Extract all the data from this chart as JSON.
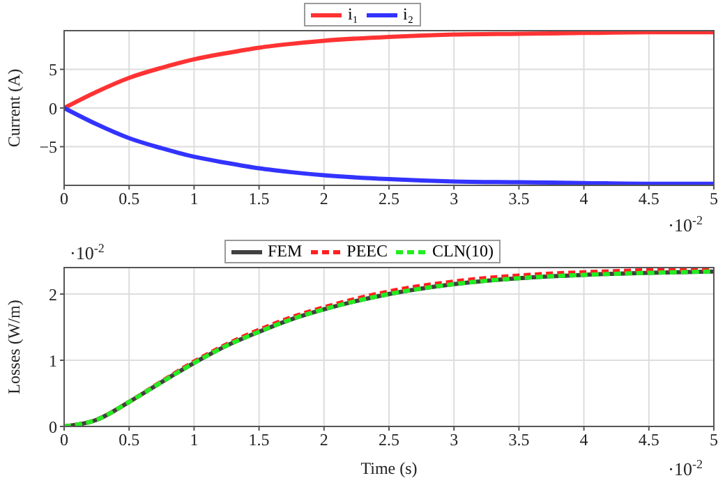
{
  "chart_data": [
    {
      "type": "line",
      "ylabel": "Current (A)",
      "legend": "top",
      "grid": true,
      "x": [
        0,
        0.25,
        0.5,
        0.75,
        1,
        1.25,
        1.5,
        1.75,
        2,
        2.5,
        3,
        3.5,
        4,
        4.5,
        5
      ],
      "series": [
        {
          "name": "i₁",
          "color": "#ff3333",
          "values": [
            0,
            2.1,
            3.9,
            5.2,
            6.3,
            7.1,
            7.8,
            8.3,
            8.7,
            9.2,
            9.5,
            9.6,
            9.7,
            9.8,
            9.8
          ]
        },
        {
          "name": "i₂",
          "color": "#3333ff",
          "values": [
            0,
            -2.1,
            -3.9,
            -5.2,
            -6.3,
            -7.1,
            -7.8,
            -8.3,
            -8.7,
            -9.2,
            -9.5,
            -9.6,
            -9.7,
            -9.8,
            -9.8
          ]
        }
      ],
      "xlim": [
        0,
        5
      ],
      "xticks": [
        0,
        0.5,
        1,
        1.5,
        2,
        2.5,
        3,
        3.5,
        4,
        4.5,
        5
      ],
      "ylim": [
        -10,
        10
      ],
      "yticks": [
        {
          "value": -5,
          "label": "−5"
        },
        0,
        5
      ],
      "annotations": [
        "·10$^{-2}$"
      ]
    },
    {
      "type": "line",
      "xlabel": "Time (s)",
      "ylabel": "Losses (W/m)",
      "legend": "top",
      "grid": true,
      "x": [
        0,
        0.25,
        0.5,
        0.75,
        1,
        1.25,
        1.5,
        1.75,
        2,
        2.5,
        3,
        3.5,
        4,
        4.5,
        5
      ],
      "series": [
        {
          "name": "FEM",
          "color": "#404040",
          "line_style": "solid",
          "values": [
            0,
            0.1,
            0.37,
            0.67,
            0.96,
            1.22,
            1.43,
            1.62,
            1.77,
            2.0,
            2.15,
            2.24,
            2.29,
            2.32,
            2.34
          ]
        },
        {
          "name": "PEEC",
          "color": "#ff2020",
          "line_style": "dashed",
          "values": [
            0,
            0.1,
            0.37,
            0.68,
            0.98,
            1.24,
            1.46,
            1.65,
            1.8,
            2.04,
            2.19,
            2.28,
            2.33,
            2.36,
            2.38
          ]
        },
        {
          "name": "CLN(10)",
          "color": "#22ee22",
          "line_style": "dashed",
          "values": [
            0,
            0.1,
            0.37,
            0.67,
            0.96,
            1.22,
            1.43,
            1.62,
            1.77,
            2.0,
            2.15,
            2.24,
            2.29,
            2.32,
            2.34
          ]
        }
      ],
      "xlim": [
        0,
        5
      ],
      "xticks": [
        0,
        0.5,
        1,
        1.5,
        2,
        2.5,
        3,
        3.5,
        4,
        4.5,
        5
      ],
      "ylim": [
        0,
        2.4
      ],
      "yticks": [
        0,
        1,
        2
      ],
      "annotations": [
        "·10$^{-2}$",
        "·10$^{-2}$"
      ]
    }
  ]
}
